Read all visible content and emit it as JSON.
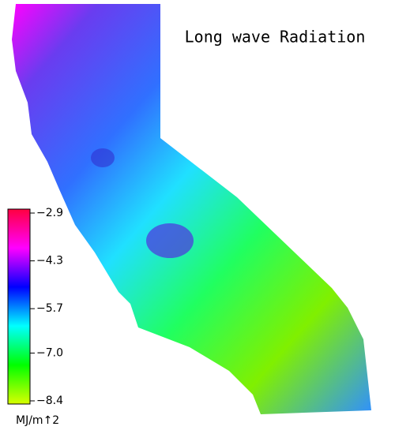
{
  "title": "Long wave Radiation",
  "colorbar": {
    "label": "MJ/m↑2",
    "lim": [
      -8.4,
      -2.9
    ],
    "ticks": [
      {
        "value": -2.9,
        "label": "−2.9"
      },
      {
        "value": -4.3,
        "label": "−4.3"
      },
      {
        "value": -5.7,
        "label": "−5.7"
      },
      {
        "value": -7.0,
        "label": "−7.0"
      },
      {
        "value": -8.4,
        "label": "−8.4"
      }
    ],
    "colors": [
      "#d8ff00",
      "#00ff00",
      "#00ffff",
      "#0000ff",
      "#ff00ff",
      "#ff0040"
    ]
  }
}
